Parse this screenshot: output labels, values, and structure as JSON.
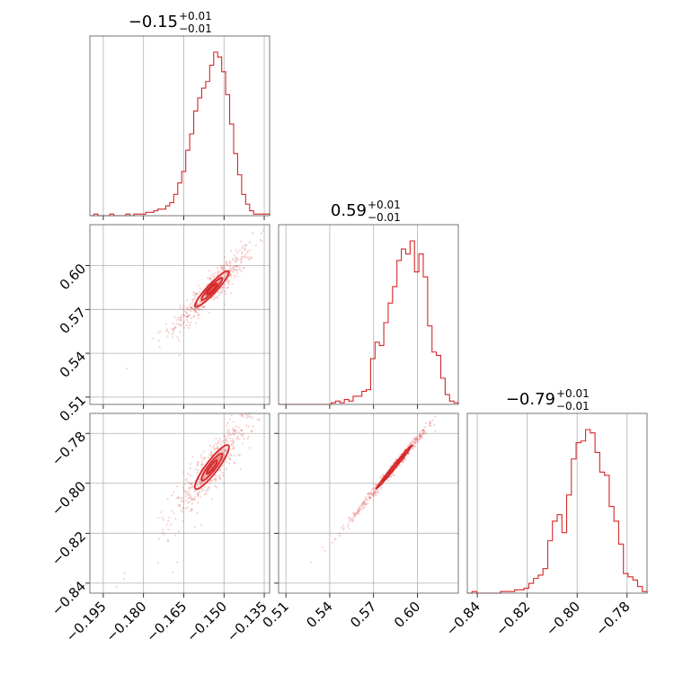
{
  "chart_data": {
    "type": "corner",
    "color": "#d62728",
    "parameters": [
      {
        "title_value": "−0.15",
        "title_plus": "+0.01",
        "title_minus": "−0.01",
        "range": [
          -0.2,
          -0.133
        ],
        "ticks": [
          -0.195,
          -0.18,
          -0.165,
          -0.15,
          -0.135
        ],
        "tick_labels": [
          "−0.195",
          "−0.180",
          "−0.165",
          "−0.150",
          "−0.135"
        ],
        "hist": [
          0,
          0.01,
          0,
          0,
          0,
          0.01,
          0,
          0,
          0,
          0.01,
          0,
          0.01,
          0.01,
          0.01,
          0.02,
          0.02,
          0.03,
          0.04,
          0.04,
          0.06,
          0.08,
          0.13,
          0.2,
          0.27,
          0.4,
          0.5,
          0.64,
          0.72,
          0.78,
          0.82,
          0.92,
          1.0,
          0.97,
          0.88,
          0.74,
          0.56,
          0.38,
          0.25,
          0.13,
          0.07,
          0.03,
          0.01,
          0.01,
          0.01,
          0.01
        ]
      },
      {
        "title_value": "0.59",
        "title_plus": "+0.01",
        "title_minus": "−0.01",
        "range": [
          0.505,
          0.628
        ],
        "ticks": [
          0.51,
          0.54,
          0.57,
          0.6
        ],
        "tick_labels": [
          "0.51",
          "0.54",
          "0.57",
          "0.60"
        ],
        "hist": [
          0,
          0,
          0,
          0,
          0,
          0,
          0,
          0,
          0,
          0,
          0,
          0,
          0.01,
          0.02,
          0.01,
          0.03,
          0.02,
          0.05,
          0.05,
          0.08,
          0.09,
          0.28,
          0.38,
          0.36,
          0.5,
          0.62,
          0.72,
          0.88,
          0.95,
          0.92,
          1.0,
          0.81,
          0.92,
          0.78,
          0.48,
          0.32,
          0.3,
          0.16,
          0.06,
          0.02,
          0.01
        ]
      },
      {
        "title_value": "−0.79",
        "title_plus": "+0.01",
        "title_minus": "−0.01",
        "range": [
          -0.844,
          -0.772
        ],
        "ticks": [
          -0.84,
          -0.82,
          -0.8,
          -0.78
        ],
        "tick_labels": [
          "−0.84",
          "−0.82",
          "−0.80",
          "−0.78"
        ],
        "hist": [
          0,
          0.01,
          0,
          0,
          0,
          0,
          0,
          0.01,
          0.01,
          0.01,
          0.02,
          0.02,
          0.03,
          0.06,
          0.09,
          0.11,
          0.15,
          0.32,
          0.44,
          0.48,
          0.37,
          0.6,
          0.82,
          0.92,
          0.93,
          1.0,
          0.98,
          0.86,
          0.74,
          0.72,
          0.53,
          0.44,
          0.3,
          0.12,
          0.1,
          0.08,
          0.04,
          0.01
        ]
      }
    ],
    "pairs": [
      {
        "x_param": 0,
        "y_param": 1,
        "center": [
          -0.1545,
          0.584
        ],
        "sigma": [
          0.0049,
          0.0095
        ],
        "rho": 0.93
      },
      {
        "x_param": 0,
        "y_param": 2,
        "center": [
          -0.1545,
          -0.7935
        ],
        "sigma": [
          0.0049,
          0.0068
        ],
        "rho": 0.9
      },
      {
        "x_param": 1,
        "y_param": 2,
        "center": [
          0.584,
          -0.7935
        ],
        "sigma": [
          0.0095,
          0.0068
        ],
        "rho": 0.995
      }
    ],
    "contour_levels": [
      0.4,
      0.8,
      1.3
    ],
    "grid": true
  }
}
